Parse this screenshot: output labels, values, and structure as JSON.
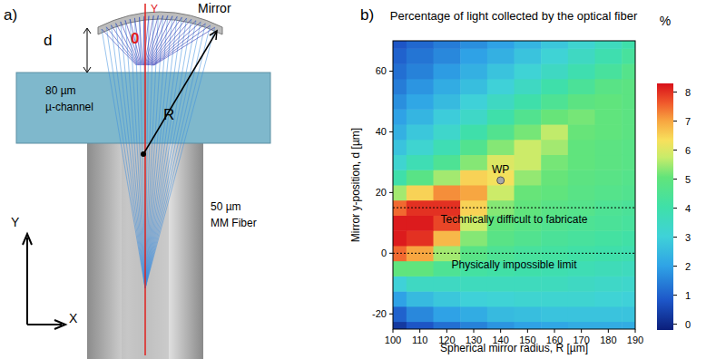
{
  "chart_data": {
    "type": "heatmap",
    "title": "Percentage of light collected by the optical fiber",
    "panel_label": "b)",
    "x_label": "Spherical mirror radius, R [µm]",
    "y_label": "Mirror y-position, d [µm]",
    "x": [
      100,
      110,
      120,
      130,
      140,
      150,
      160,
      170,
      180,
      190
    ],
    "y": [
      -25,
      -20,
      -15,
      -10,
      -5,
      0,
      5,
      10,
      15,
      20,
      25,
      30,
      35,
      40,
      45,
      50,
      55,
      60,
      65,
      70
    ],
    "cells": [
      [
        0.3,
        0.8,
        1.2,
        1.5,
        1.8,
        2,
        2.1,
        2.2,
        2.2,
        2.2
      ],
      [
        1,
        1.6,
        2,
        2.2,
        2.5,
        2.6,
        2.7,
        2.7,
        2.7,
        2.7
      ],
      [
        2,
        2.5,
        2.8,
        3,
        3.1,
        3.2,
        3.2,
        3.2,
        3.1,
        3
      ],
      [
        3,
        3.5,
        3.5,
        3.6,
        3.6,
        3.6,
        3.6,
        3.5,
        3.4,
        3.3
      ],
      [
        5,
        5,
        4.5,
        4.2,
        4.1,
        4,
        3.9,
        3.8,
        3.7,
        3.6
      ],
      [
        7.5,
        7,
        5.5,
        4.8,
        4.5,
        4.3,
        4.2,
        4.1,
        4,
        3.9
      ],
      [
        8.2,
        8,
        6.8,
        5.3,
        4.8,
        4.6,
        4.4,
        4.3,
        4.2,
        4.1
      ],
      [
        8.2,
        8.2,
        7.8,
        5.8,
        5,
        4.8,
        4.6,
        4.5,
        4.4,
        4.3
      ],
      [
        7.5,
        8,
        8,
        6.5,
        5.3,
        5,
        4.8,
        4.7,
        4.5,
        4.4
      ],
      [
        5.5,
        6.5,
        7.2,
        7,
        5.8,
        5.1,
        5,
        4.8,
        4.7,
        4.6
      ],
      [
        4,
        4.8,
        5.5,
        6.5,
        6.3,
        5.4,
        5.1,
        4.9,
        4.8,
        4.7
      ],
      [
        3.2,
        3.8,
        4.5,
        5.3,
        6,
        5.8,
        5.2,
        5,
        4.9,
        4.8
      ],
      [
        2.7,
        3.2,
        3.8,
        4.6,
        5.3,
        5.8,
        5.5,
        5,
        4.9,
        4.8
      ],
      [
        2.3,
        2.8,
        3.3,
        4,
        4.6,
        5.2,
        5.7,
        5.1,
        5,
        4.9
      ],
      [
        2,
        2.4,
        2.9,
        3.4,
        4,
        4.6,
        5.1,
        5.2,
        5,
        4.9
      ],
      [
        1.7,
        2.1,
        2.5,
        3,
        3.5,
        4,
        4.5,
        4.9,
        5,
        4.9
      ],
      [
        1.4,
        1.8,
        2.2,
        2.6,
        3,
        3.5,
        4,
        4.4,
        4.8,
        4.9
      ],
      [
        1.2,
        1.5,
        1.9,
        2.3,
        2.7,
        3.1,
        3.5,
        3.9,
        4.3,
        4.7
      ],
      [
        1,
        1.3,
        1.6,
        2,
        2.3,
        2.7,
        3.1,
        3.5,
        3.9,
        4.3
      ],
      [
        0.8,
        1.1,
        1.4,
        1.7,
        2,
        2.4,
        2.8,
        3.2,
        3.6,
        4
      ]
    ],
    "xlim": [
      100,
      190
    ],
    "xticks": [
      100,
      110,
      120,
      130,
      140,
      150,
      160,
      170,
      180,
      190
    ],
    "ylim": [
      -25,
      70
    ],
    "yticks": [
      -20,
      0,
      20,
      40,
      60
    ],
    "colorbar": {
      "label": "%",
      "lim": [
        -0.2,
        8.3
      ],
      "ticks": [
        0,
        1,
        2,
        3,
        4,
        5,
        6,
        7,
        8
      ]
    },
    "reference_lines": [
      {
        "y": 15,
        "label": "Technically difficult to fabricate"
      },
      {
        "y": 0,
        "label": "Physically impossible limit"
      }
    ],
    "points": [
      {
        "x": 140,
        "y": 24,
        "label": "WP"
      }
    ]
  },
  "diagram": {
    "panel_label": "a)",
    "mirror": "Mirror",
    "d": "d",
    "origin": "0",
    "axis_y": "Y",
    "radius": "R",
    "channel_width": "80 µm",
    "channel": "µ-channel",
    "fiber_size": "50 µm",
    "fiber": "MM Fiber",
    "coord_y": "Y",
    "coord_x": "X"
  }
}
